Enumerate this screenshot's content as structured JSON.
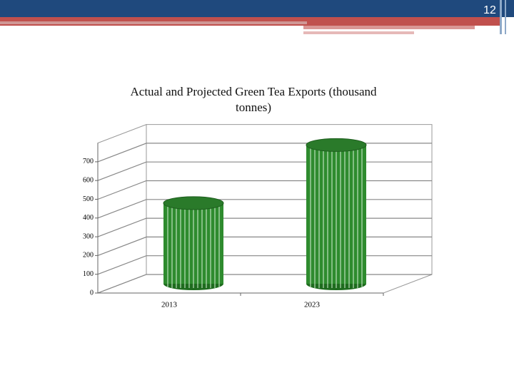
{
  "page_number": "12",
  "chart_data": {
    "type": "bar",
    "title": "Actual and Projected Green Tea Exports (thousand tonnes)",
    "categories": [
      "2013",
      "2023"
    ],
    "values": [
      430,
      740
    ],
    "color": "#2e8b2e",
    "ylim": [
      0,
      800
    ],
    "yticks": [
      0,
      100,
      200,
      300,
      400,
      500,
      600,
      700
    ],
    "grid": true
  }
}
